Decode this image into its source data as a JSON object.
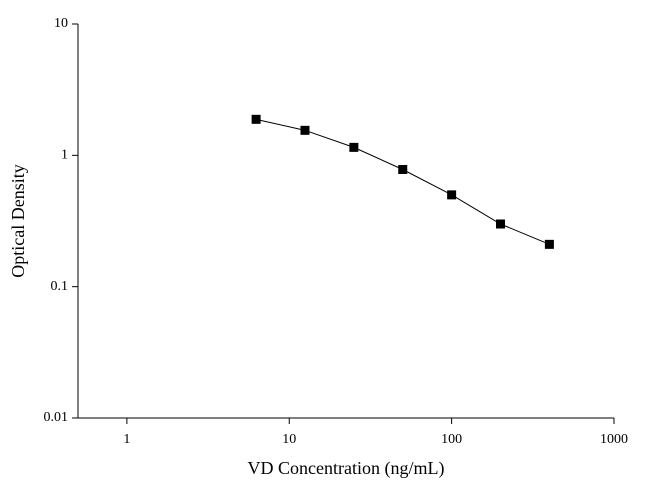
{
  "chart_data": {
    "type": "line",
    "x_label": "VD Concentration (ng/mL)",
    "y_label": "Optical Density",
    "x": [
      6.25,
      12.5,
      25,
      50,
      100,
      200,
      400
    ],
    "series": [
      {
        "color": "#000000",
        "values": [
          1.88,
          1.55,
          1.15,
          0.78,
          0.5,
          0.3,
          0.21
        ]
      }
    ],
    "xlim": [
      0.5,
      1000
    ],
    "ylim": [
      0.01,
      10
    ],
    "xticks": [
      1,
      10,
      100,
      1000
    ],
    "yticks": [
      0.01,
      0.1,
      1,
      10
    ],
    "xscale": "log",
    "yscale": "log",
    "markers": "square"
  }
}
